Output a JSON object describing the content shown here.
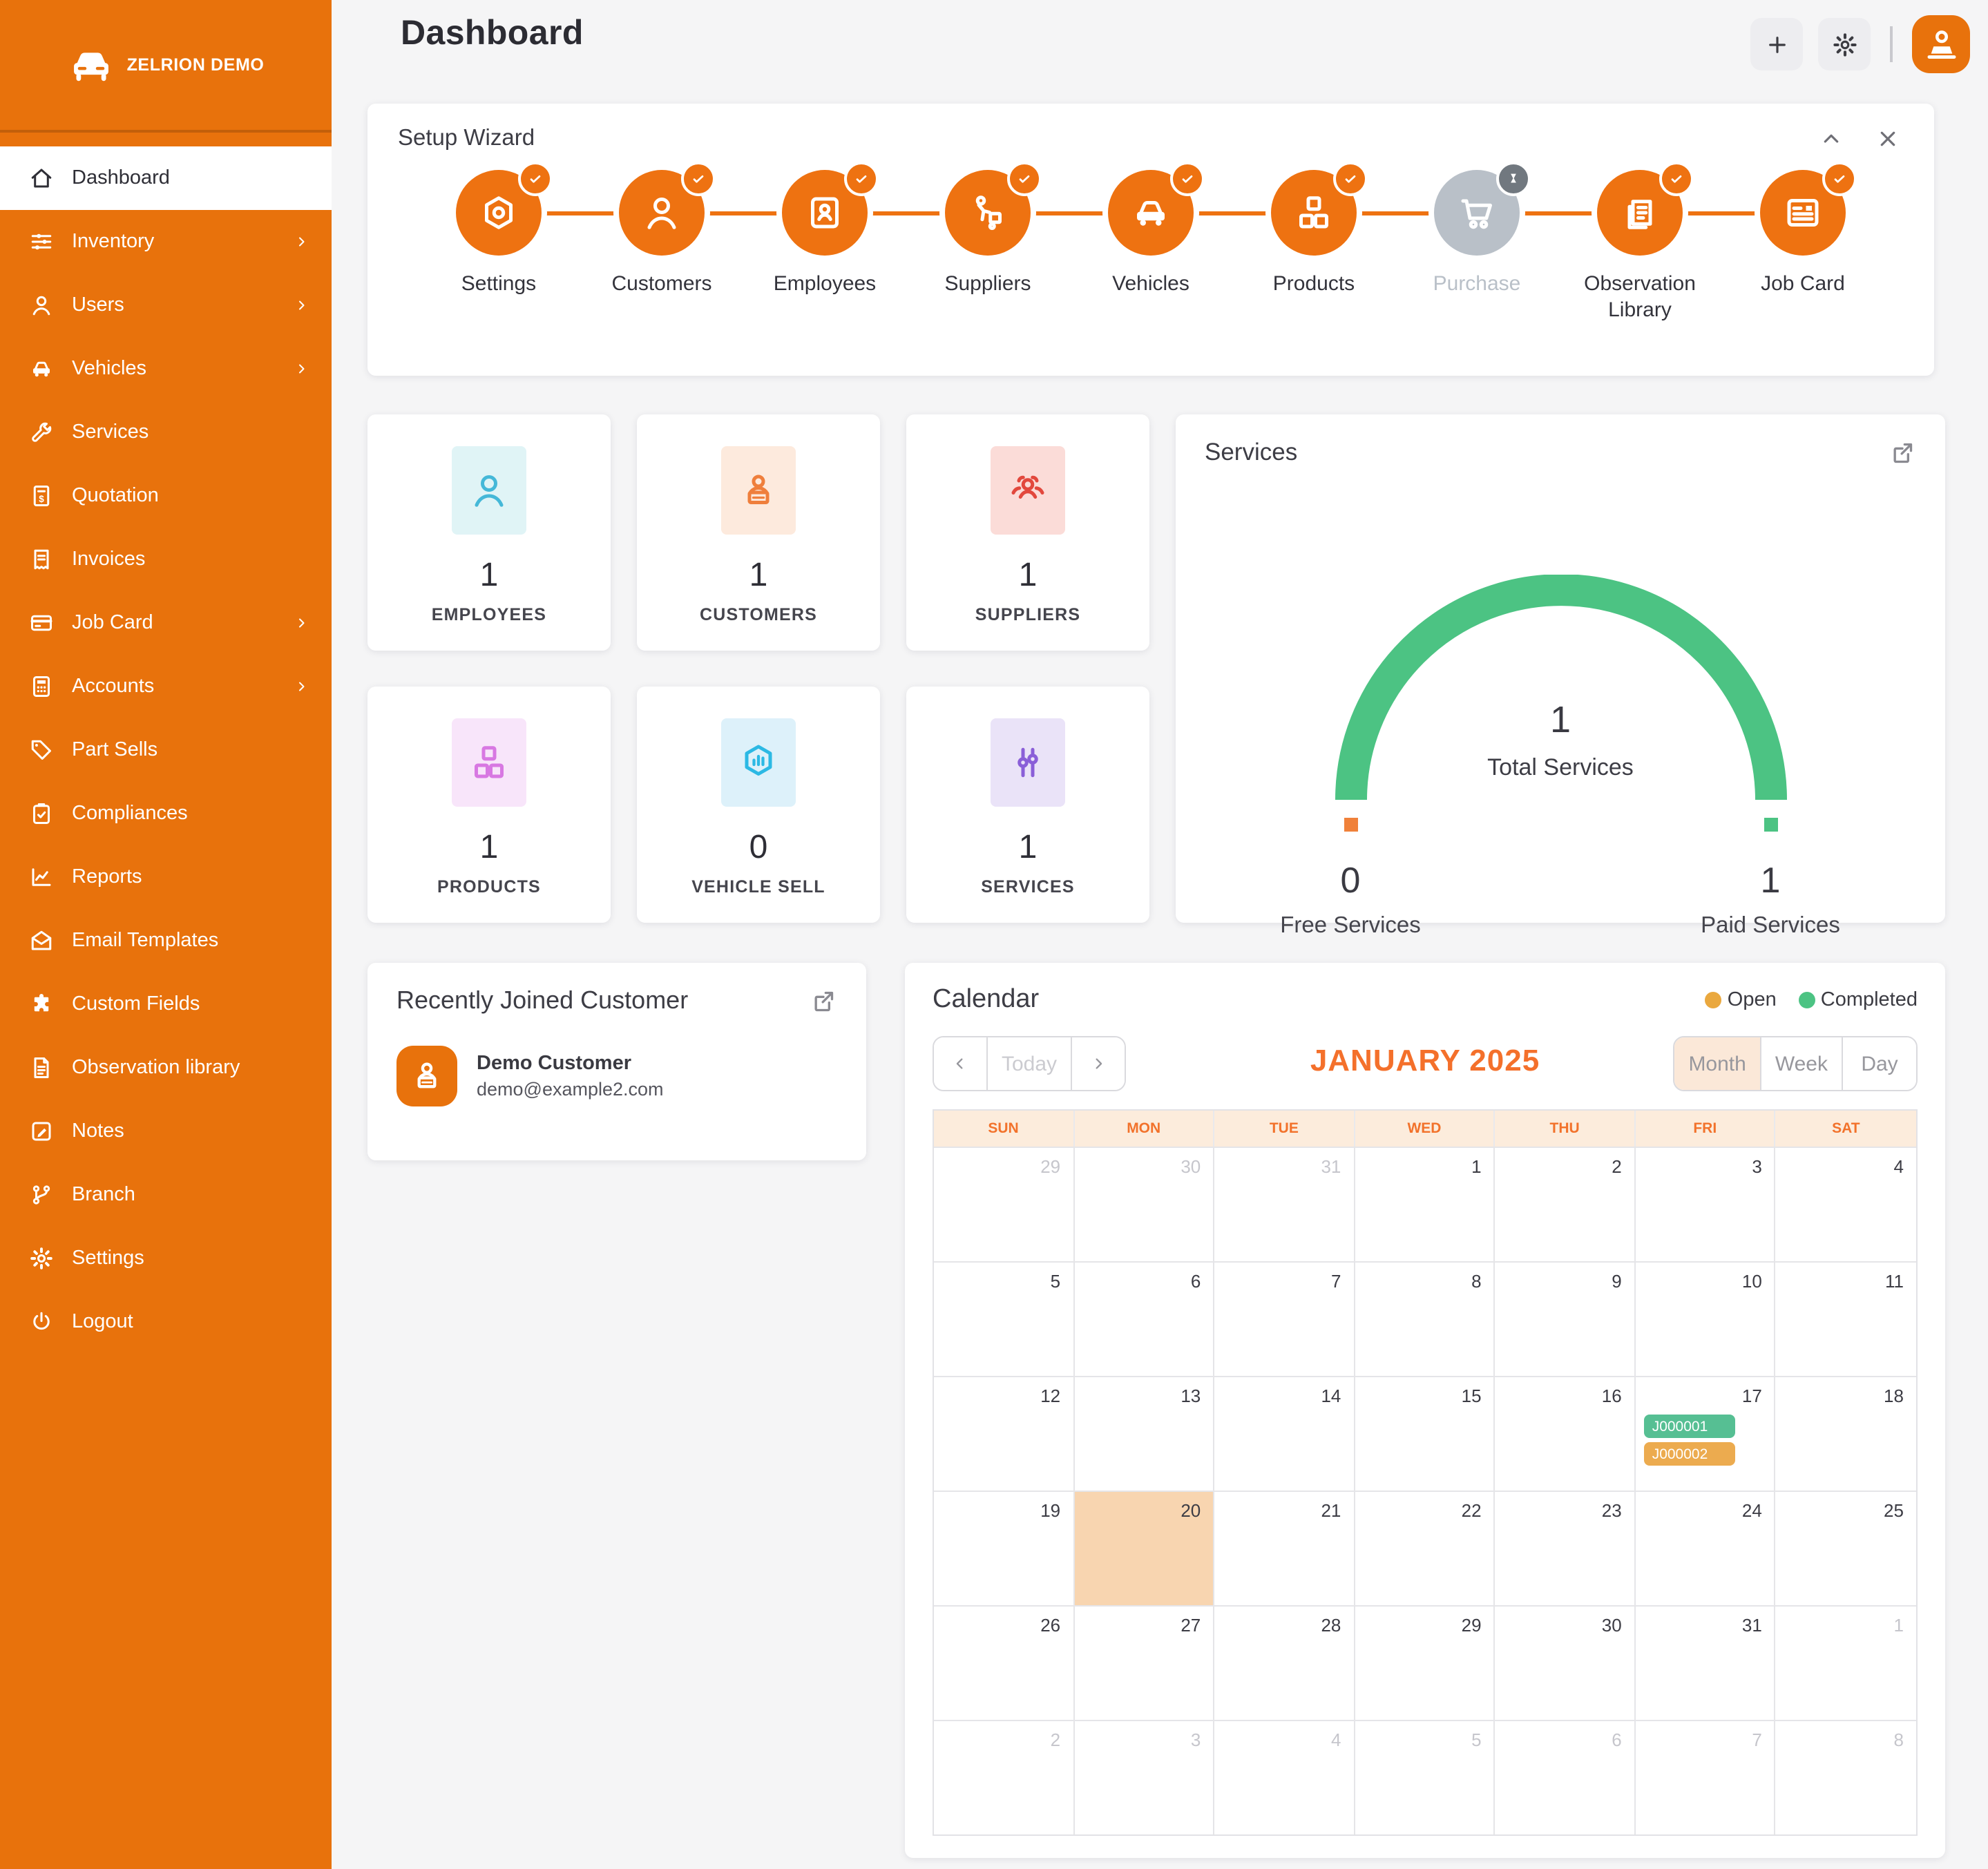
{
  "brand": {
    "name": "ZELRION DEMO"
  },
  "header": {
    "title": "Dashboard"
  },
  "sidebar": {
    "items": [
      {
        "label": "Dashboard",
        "icon": "home",
        "active": true,
        "submenu": false
      },
      {
        "label": "Inventory",
        "icon": "sliders",
        "active": false,
        "submenu": true
      },
      {
        "label": "Users",
        "icon": "user",
        "active": false,
        "submenu": true
      },
      {
        "label": "Vehicles",
        "icon": "car",
        "active": false,
        "submenu": true
      },
      {
        "label": "Services",
        "icon": "wrench",
        "active": false,
        "submenu": false
      },
      {
        "label": "Quotation",
        "icon": "quotation",
        "active": false,
        "submenu": false
      },
      {
        "label": "Invoices",
        "icon": "receipt",
        "active": false,
        "submenu": false
      },
      {
        "label": "Job Card",
        "icon": "credit-card",
        "active": false,
        "submenu": true
      },
      {
        "label": "Accounts",
        "icon": "calculator",
        "active": false,
        "submenu": true
      },
      {
        "label": "Part Sells",
        "icon": "tag",
        "active": false,
        "submenu": false
      },
      {
        "label": "Compliances",
        "icon": "clipboard-check",
        "active": false,
        "submenu": false
      },
      {
        "label": "Reports",
        "icon": "chart-line",
        "active": false,
        "submenu": false
      },
      {
        "label": "Email Templates",
        "icon": "envelope",
        "active": false,
        "submenu": false
      },
      {
        "label": "Custom Fields",
        "icon": "puzzle",
        "active": false,
        "submenu": false
      },
      {
        "label": "Observation library",
        "icon": "file",
        "active": false,
        "submenu": false
      },
      {
        "label": "Notes",
        "icon": "pen",
        "active": false,
        "submenu": false
      },
      {
        "label": "Branch",
        "icon": "branch",
        "active": false,
        "submenu": false
      },
      {
        "label": "Settings",
        "icon": "gear",
        "active": false,
        "submenu": false
      },
      {
        "label": "Logout",
        "icon": "power",
        "active": false,
        "submenu": false
      }
    ]
  },
  "wizard": {
    "title": "Setup Wizard",
    "steps": [
      {
        "label": "Settings",
        "icon": "nut",
        "status": "done"
      },
      {
        "label": "Customers",
        "icon": "user",
        "status": "done"
      },
      {
        "label": "Employees",
        "icon": "id-badge",
        "status": "done"
      },
      {
        "label": "Suppliers",
        "icon": "supplier",
        "status": "done"
      },
      {
        "label": "Vehicles",
        "icon": "car",
        "status": "done"
      },
      {
        "label": "Products",
        "icon": "cubes",
        "status": "done"
      },
      {
        "label": "Purchase",
        "icon": "cart",
        "status": "pending"
      },
      {
        "label": "Observation Library",
        "icon": "docs",
        "status": "done"
      },
      {
        "label": "Job Card",
        "icon": "jobcard",
        "status": "done"
      }
    ]
  },
  "stats": [
    {
      "value": "1",
      "label": "EMPLOYEES",
      "icon": "user",
      "fg": "#45b8d8",
      "bg": "#e0f4f6"
    },
    {
      "value": "1",
      "label": "CUSTOMERS",
      "icon": "client",
      "fg": "#ef7f3c",
      "bg": "#fdeadd"
    },
    {
      "value": "1",
      "label": "SUPPLIERS",
      "icon": "group",
      "fg": "#e2483d",
      "bg": "#fbdcd8"
    },
    {
      "value": "1",
      "label": "PRODUCTS",
      "icon": "cubes",
      "fg": "#d878e2",
      "bg": "#f8e5fa"
    },
    {
      "value": "0",
      "label": "VEHICLE SELL",
      "icon": "hexbar",
      "fg": "#2cb9e4",
      "bg": "#ddf1fa"
    },
    {
      "value": "1",
      "label": "SERVICES",
      "icon": "slider-v",
      "fg": "#8a5fd8",
      "bg": "#eae3f8"
    }
  ],
  "services_widget": {
    "title": "Services",
    "gauge_color": "#4cc383",
    "total_value": "1",
    "total_label": "Total Services",
    "free_value": "0",
    "free_label": "Free Services",
    "free_color": "#f0813a",
    "paid_value": "1",
    "paid_label": "Paid Services",
    "paid_color": "#4cc383"
  },
  "recent_customer": {
    "title": "Recently Joined Customer",
    "name": "Demo Customer",
    "email": "demo@example2.com"
  },
  "calendar": {
    "title": "Calendar",
    "legend": [
      {
        "label": "Open",
        "color": "#eaa83e"
      },
      {
        "label": "Completed",
        "color": "#4cc383"
      }
    ],
    "nav": {
      "today_label": "Today"
    },
    "month_title": "JANUARY 2025",
    "views": [
      {
        "label": "Month",
        "active": true
      },
      {
        "label": "Week",
        "active": false
      },
      {
        "label": "Day",
        "active": false
      }
    ],
    "day_headers": [
      "SUN",
      "MON",
      "TUE",
      "WED",
      "THU",
      "FRI",
      "SAT"
    ],
    "weeks": [
      [
        {
          "d": "29",
          "muted": true
        },
        {
          "d": "30",
          "muted": true
        },
        {
          "d": "31",
          "muted": true
        },
        {
          "d": "1"
        },
        {
          "d": "2"
        },
        {
          "d": "3"
        },
        {
          "d": "4"
        }
      ],
      [
        {
          "d": "5"
        },
        {
          "d": "6"
        },
        {
          "d": "7"
        },
        {
          "d": "8"
        },
        {
          "d": "9"
        },
        {
          "d": "10"
        },
        {
          "d": "11"
        }
      ],
      [
        {
          "d": "12"
        },
        {
          "d": "13"
        },
        {
          "d": "14"
        },
        {
          "d": "15"
        },
        {
          "d": "16"
        },
        {
          "d": "17",
          "events": [
            {
              "label": "J000001",
              "color": "#56bf93"
            },
            {
              "label": "J000002",
              "color": "#ecab4f"
            }
          ]
        },
        {
          "d": "18"
        }
      ],
      [
        {
          "d": "19"
        },
        {
          "d": "20",
          "today": true
        },
        {
          "d": "21"
        },
        {
          "d": "22"
        },
        {
          "d": "23"
        },
        {
          "d": "24"
        },
        {
          "d": "25"
        }
      ],
      [
        {
          "d": "26"
        },
        {
          "d": "27"
        },
        {
          "d": "28"
        },
        {
          "d": "29"
        },
        {
          "d": "30"
        },
        {
          "d": "31"
        },
        {
          "d": "1",
          "muted": true
        }
      ],
      [
        {
          "d": "2",
          "muted": true
        },
        {
          "d": "3",
          "muted": true
        },
        {
          "d": "4",
          "muted": true
        },
        {
          "d": "5",
          "muted": true
        },
        {
          "d": "6",
          "muted": true
        },
        {
          "d": "7",
          "muted": true
        },
        {
          "d": "8",
          "muted": true
        }
      ]
    ]
  }
}
